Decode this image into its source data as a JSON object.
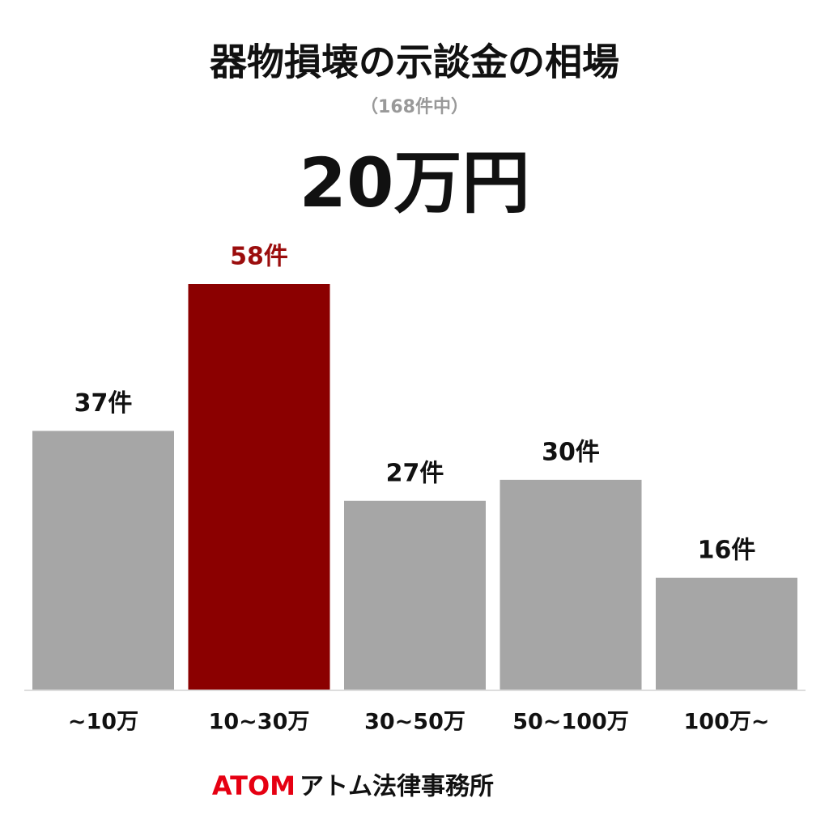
{
  "chart_data": {
    "type": "bar",
    "title": "器物損壊の示談金の相場",
    "subtitle": "（168件中）",
    "annotation": "20万円",
    "categories": [
      "~10万",
      "10~30万",
      "30~50万",
      "50~100万",
      "100万~"
    ],
    "values": [
      37,
      58,
      27,
      30,
      16
    ],
    "value_labels": [
      "37件",
      "58件",
      "27件",
      "30件",
      "16件"
    ],
    "colors": [
      "#a6a6a6",
      "#8b0000",
      "#a6a6a6",
      "#a6a6a6",
      "#a6a6a6"
    ],
    "label_colors": [
      "#111111",
      "#9b0d0d",
      "#111111",
      "#111111",
      "#111111"
    ],
    "footer_brand": "ATOM",
    "footer_name": "アトム法律事務所"
  }
}
